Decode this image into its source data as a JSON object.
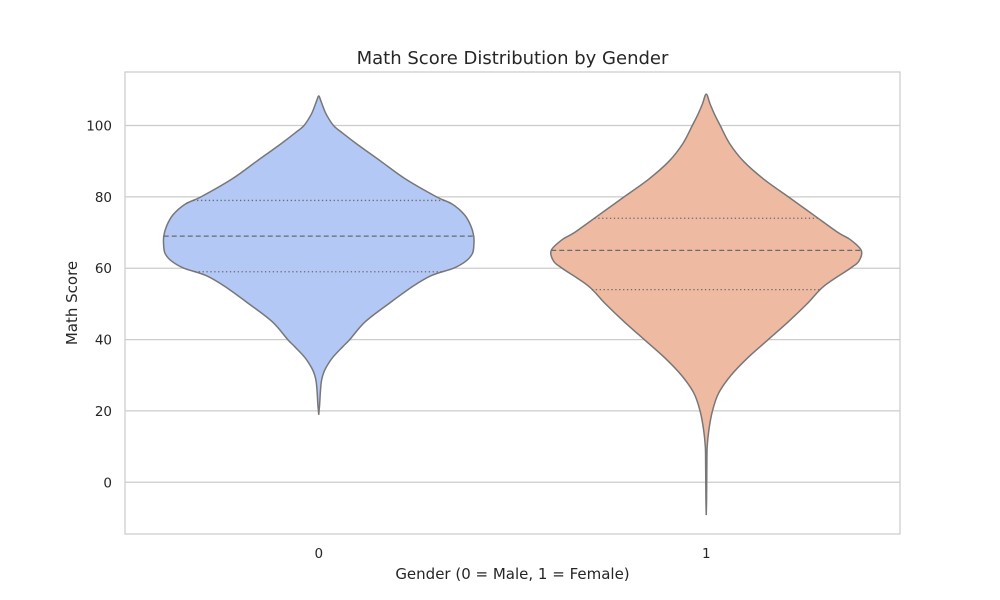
{
  "chart_data": {
    "type": "violin",
    "title": "Math Score Distribution by Gender",
    "xlabel": "Gender (0 = Male, 1 = Female)",
    "ylabel": "Math Score",
    "categories": [
      "0",
      "1"
    ],
    "ylim": [
      -14.5,
      115
    ],
    "yticks": [
      0,
      20,
      40,
      60,
      80,
      100
    ],
    "grid": true,
    "inner": "quartile",
    "series": [
      {
        "category": "0",
        "color": "#b3c8f5",
        "edge_color": "#777777",
        "quartiles": {
          "q1": 59,
          "median": 69,
          "q3": 79
        },
        "profile": [
          [
            18.9,
            0.0
          ],
          [
            20,
            0.002
          ],
          [
            22,
            0.006
          ],
          [
            25,
            0.01
          ],
          [
            28,
            0.016
          ],
          [
            30,
            0.026
          ],
          [
            32,
            0.045
          ],
          [
            35,
            0.09
          ],
          [
            38,
            0.155
          ],
          [
            40,
            0.2
          ],
          [
            45,
            0.3
          ],
          [
            50,
            0.45
          ],
          [
            55,
            0.61
          ],
          [
            58,
            0.73
          ],
          [
            60,
            0.87
          ],
          [
            62,
            0.95
          ],
          [
            64,
            0.99
          ],
          [
            66,
            1.0
          ],
          [
            69,
            1.0
          ],
          [
            72,
            0.98
          ],
          [
            75,
            0.94
          ],
          [
            78,
            0.86
          ],
          [
            80,
            0.76
          ],
          [
            85,
            0.56
          ],
          [
            90,
            0.4
          ],
          [
            95,
            0.24
          ],
          [
            98,
            0.15
          ],
          [
            100,
            0.095
          ],
          [
            103,
            0.05
          ],
          [
            105,
            0.03
          ],
          [
            107,
            0.013
          ],
          [
            108.3,
            0.0
          ]
        ]
      },
      {
        "category": "1",
        "color": "#efbaa2",
        "edge_color": "#777777",
        "quartiles": {
          "q1": 54,
          "median": 65,
          "q3": 74
        },
        "profile": [
          [
            -9.2,
            0.0
          ],
          [
            -5,
            0.002
          ],
          [
            0,
            0.003
          ],
          [
            5,
            0.004
          ],
          [
            10,
            0.006
          ],
          [
            15,
            0.018
          ],
          [
            20,
            0.04
          ],
          [
            25,
            0.08
          ],
          [
            30,
            0.16
          ],
          [
            35,
            0.27
          ],
          [
            40,
            0.4
          ],
          [
            45,
            0.53
          ],
          [
            50,
            0.65
          ],
          [
            55,
            0.76
          ],
          [
            60,
            0.93
          ],
          [
            62,
            0.985
          ],
          [
            65,
            1.0
          ],
          [
            68,
            0.93
          ],
          [
            70,
            0.85
          ],
          [
            75,
            0.69
          ],
          [
            80,
            0.53
          ],
          [
            85,
            0.37
          ],
          [
            90,
            0.24
          ],
          [
            95,
            0.15
          ],
          [
            100,
            0.09
          ],
          [
            103,
            0.055
          ],
          [
            106,
            0.025
          ],
          [
            108.8,
            0.0
          ]
        ]
      }
    ]
  }
}
